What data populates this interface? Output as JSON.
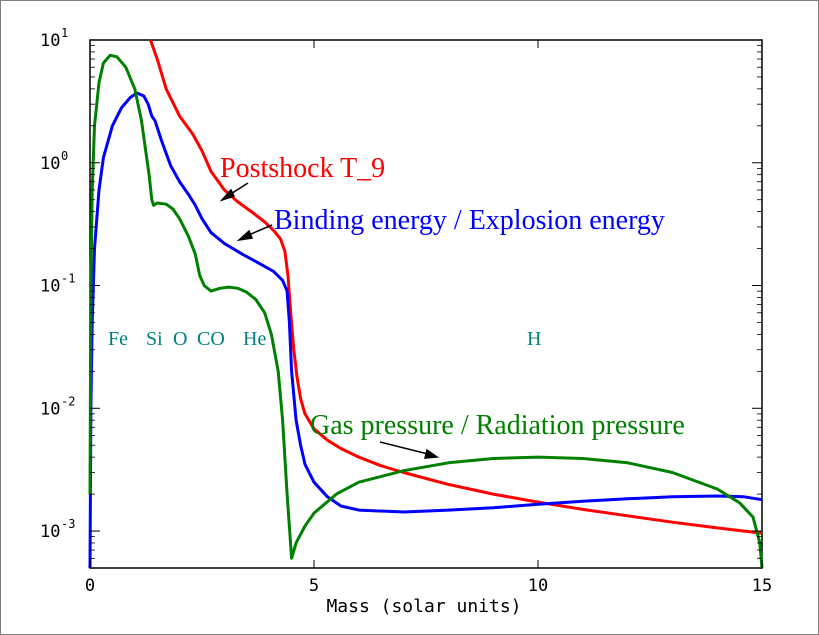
{
  "chart_data": {
    "type": "line",
    "xlabel": "Mass (solar units)",
    "ylabel": "",
    "xlim": [
      0,
      15
    ],
    "ylim": [
      0.0005,
      10
    ],
    "y_scale": "log",
    "grid": false,
    "x_ticks": [
      "0",
      "5",
      "10",
      "15"
    ],
    "y_ticks": [
      {
        "base": "10",
        "exp": "1",
        "value": 10
      },
      {
        "base": "10",
        "exp": "0",
        "value": 1
      },
      {
        "base": "10",
        "exp": "-1",
        "value": 0.1
      },
      {
        "base": "10",
        "exp": "-2",
        "value": 0.01
      },
      {
        "base": "10",
        "exp": "-3",
        "value": 0.001
      }
    ],
    "series": [
      {
        "name": "Postshock T_9",
        "color": "#ff0000",
        "points": [
          [
            1.35,
            10
          ],
          [
            1.5,
            7
          ],
          [
            1.7,
            4
          ],
          [
            2,
            2.4
          ],
          [
            2.3,
            1.7
          ],
          [
            2.5,
            1.25
          ],
          [
            2.7,
            0.85
          ],
          [
            3,
            0.6
          ],
          [
            3.3,
            0.48
          ],
          [
            3.6,
            0.4
          ],
          [
            3.9,
            0.33
          ],
          [
            4.1,
            0.28
          ],
          [
            4.25,
            0.24
          ],
          [
            4.35,
            0.19
          ],
          [
            4.42,
            0.12
          ],
          [
            4.48,
            0.06
          ],
          [
            4.55,
            0.03
          ],
          [
            4.62,
            0.018
          ],
          [
            4.7,
            0.012
          ],
          [
            4.8,
            0.009
          ],
          [
            5,
            0.0068
          ],
          [
            5.3,
            0.0055
          ],
          [
            5.6,
            0.0047
          ],
          [
            6,
            0.004
          ],
          [
            6.5,
            0.0034
          ],
          [
            7,
            0.003
          ],
          [
            8,
            0.0024
          ],
          [
            9,
            0.002
          ],
          [
            10,
            0.00172
          ],
          [
            11,
            0.0015
          ],
          [
            12,
            0.00133
          ],
          [
            13,
            0.00118
          ],
          [
            14,
            0.00106
          ],
          [
            15,
            0.00096
          ]
        ]
      },
      {
        "name": "Binding energy / Explosion energy",
        "color": "#0000ff",
        "points": [
          [
            0,
            0.0005
          ],
          [
            0.02,
            0.01
          ],
          [
            0.05,
            0.05
          ],
          [
            0.1,
            0.2
          ],
          [
            0.2,
            0.6
          ],
          [
            0.3,
            1.1
          ],
          [
            0.5,
            2
          ],
          [
            0.7,
            2.8
          ],
          [
            0.9,
            3.4
          ],
          [
            1.05,
            3.7
          ],
          [
            1.2,
            3.5
          ],
          [
            1.3,
            3
          ],
          [
            1.38,
            2.4
          ],
          [
            1.45,
            2.2
          ],
          [
            1.6,
            1.5
          ],
          [
            1.8,
            0.95
          ],
          [
            2,
            0.7
          ],
          [
            2.2,
            0.55
          ],
          [
            2.35,
            0.45
          ],
          [
            2.5,
            0.35
          ],
          [
            2.7,
            0.27
          ],
          [
            3,
            0.22
          ],
          [
            3.4,
            0.18
          ],
          [
            3.8,
            0.15
          ],
          [
            4.1,
            0.13
          ],
          [
            4.3,
            0.11
          ],
          [
            4.4,
            0.09
          ],
          [
            4.45,
            0.05
          ],
          [
            4.5,
            0.02
          ],
          [
            4.6,
            0.008
          ],
          [
            4.7,
            0.005
          ],
          [
            4.8,
            0.0035
          ],
          [
            5,
            0.0025
          ],
          [
            5.3,
            0.0019
          ],
          [
            5.6,
            0.0016
          ],
          [
            6,
            0.00148
          ],
          [
            7,
            0.00143
          ],
          [
            8,
            0.00148
          ],
          [
            9,
            0.00155
          ],
          [
            10,
            0.00165
          ],
          [
            11,
            0.00175
          ],
          [
            12,
            0.00183
          ],
          [
            13,
            0.0019
          ],
          [
            14,
            0.00193
          ],
          [
            14.6,
            0.0019
          ],
          [
            15,
            0.0018
          ]
        ]
      },
      {
        "name": "Gas pressure / Radiation pressure",
        "color": "#008000",
        "points": [
          [
            0,
            0.002
          ],
          [
            0.02,
            0.1
          ],
          [
            0.05,
            0.6
          ],
          [
            0.1,
            2
          ],
          [
            0.2,
            4.5
          ],
          [
            0.3,
            6.5
          ],
          [
            0.45,
            7.5
          ],
          [
            0.6,
            7.3
          ],
          [
            0.8,
            6
          ],
          [
            1,
            4
          ],
          [
            1.15,
            2.2
          ],
          [
            1.25,
            1.2
          ],
          [
            1.32,
            0.8
          ],
          [
            1.38,
            0.5
          ],
          [
            1.42,
            0.45
          ],
          [
            1.5,
            0.47
          ],
          [
            1.7,
            0.46
          ],
          [
            1.85,
            0.42
          ],
          [
            2,
            0.35
          ],
          [
            2.2,
            0.25
          ],
          [
            2.35,
            0.18
          ],
          [
            2.45,
            0.12
          ],
          [
            2.55,
            0.1
          ],
          [
            2.7,
            0.09
          ],
          [
            2.9,
            0.095
          ],
          [
            3.1,
            0.097
          ],
          [
            3.3,
            0.095
          ],
          [
            3.5,
            0.088
          ],
          [
            3.7,
            0.077
          ],
          [
            3.9,
            0.06
          ],
          [
            4.05,
            0.04
          ],
          [
            4.2,
            0.02
          ],
          [
            4.3,
            0.008
          ],
          [
            4.4,
            0.002
          ],
          [
            4.5,
            0.0006
          ],
          [
            4.6,
            0.0008
          ],
          [
            4.8,
            0.0011
          ],
          [
            5,
            0.0014
          ],
          [
            5.5,
            0.002
          ],
          [
            6,
            0.0025
          ],
          [
            7,
            0.0031
          ],
          [
            8,
            0.0036
          ],
          [
            9,
            0.0039
          ],
          [
            10,
            0.004
          ],
          [
            11,
            0.0039
          ],
          [
            12,
            0.0036
          ],
          [
            13,
            0.003
          ],
          [
            14,
            0.0022
          ],
          [
            14.5,
            0.0017
          ],
          [
            14.8,
            0.0013
          ],
          [
            14.95,
            0.0008
          ],
          [
            15,
            0.0005
          ]
        ]
      }
    ],
    "annotations": [
      {
        "text": "Postshock T_9",
        "color": "#ff0000"
      },
      {
        "text": "Binding energy / Explosion energy",
        "color": "#0000ff"
      },
      {
        "text": "Gas pressure / Radiation pressure",
        "color": "#008000"
      }
    ],
    "layer_labels": [
      "Fe",
      "Si",
      "O",
      "CO",
      "He",
      "H"
    ]
  }
}
